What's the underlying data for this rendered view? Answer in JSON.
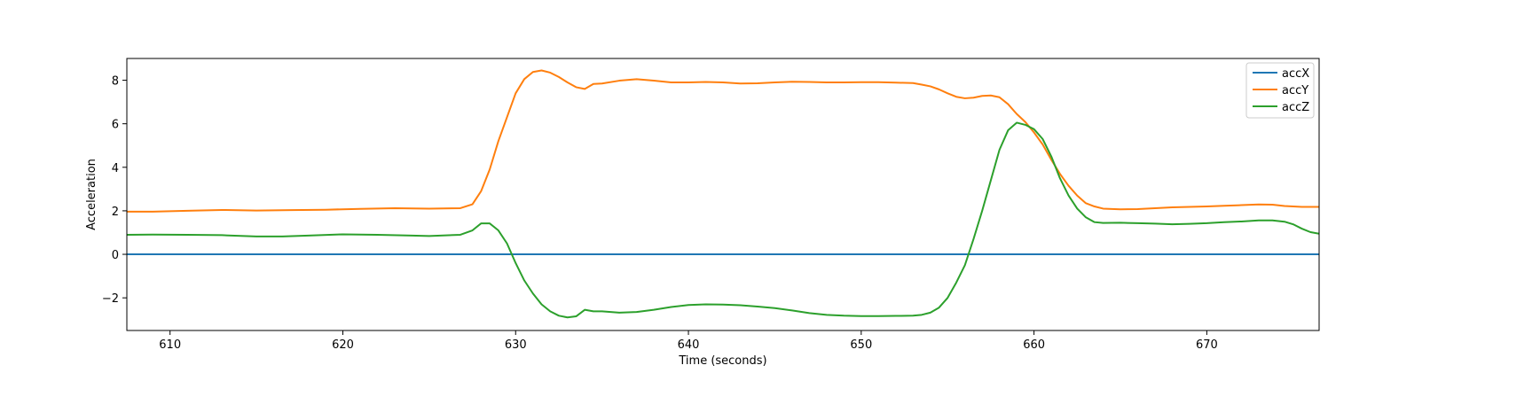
{
  "chart_data": {
    "type": "line",
    "title": "",
    "xlabel": "Time (seconds)",
    "ylabel": "Acceleration",
    "xlim": [
      607.5,
      676.5
    ],
    "ylim": [
      -3.5,
      9.0
    ],
    "xticks": [
      610,
      620,
      630,
      640,
      650,
      660,
      670
    ],
    "xtick_labels": [
      "610",
      "620",
      "630",
      "640",
      "650",
      "660",
      "670"
    ],
    "yticks": [
      -2,
      0,
      2,
      4,
      6,
      8
    ],
    "ytick_labels": [
      "−2",
      "0",
      "2",
      "4",
      "6",
      "8"
    ],
    "grid": false,
    "legend_position": "top-right",
    "series": [
      {
        "name": "accX",
        "color": "#1f77b4",
        "points": [
          [
            607.5,
            0
          ],
          [
            676.5,
            0
          ]
        ]
      },
      {
        "name": "accY",
        "color": "#ff7f0e",
        "points": [
          [
            607.5,
            1.96
          ],
          [
            609,
            1.96
          ],
          [
            611,
            2.0
          ],
          [
            613,
            2.04
          ],
          [
            615,
            2.01
          ],
          [
            617,
            2.03
          ],
          [
            619,
            2.05
          ],
          [
            621,
            2.09
          ],
          [
            623,
            2.12
          ],
          [
            625,
            2.1
          ],
          [
            626.8,
            2.12
          ],
          [
            627.5,
            2.3
          ],
          [
            628.0,
            2.9
          ],
          [
            628.5,
            3.9
          ],
          [
            629.0,
            5.2
          ],
          [
            629.5,
            6.3
          ],
          [
            630.0,
            7.4
          ],
          [
            630.5,
            8.05
          ],
          [
            631.0,
            8.38
          ],
          [
            631.5,
            8.45
          ],
          [
            632.0,
            8.35
          ],
          [
            632.5,
            8.15
          ],
          [
            633.0,
            7.9
          ],
          [
            633.5,
            7.68
          ],
          [
            634.0,
            7.6
          ],
          [
            634.5,
            7.83
          ],
          [
            635.0,
            7.85
          ],
          [
            636.0,
            7.98
          ],
          [
            637.0,
            8.05
          ],
          [
            638.0,
            7.98
          ],
          [
            639.0,
            7.9
          ],
          [
            640.0,
            7.9
          ],
          [
            641.0,
            7.92
          ],
          [
            642.0,
            7.9
          ],
          [
            643.0,
            7.85
          ],
          [
            644.0,
            7.86
          ],
          [
            645.0,
            7.9
          ],
          [
            646.0,
            7.93
          ],
          [
            647.0,
            7.92
          ],
          [
            648.0,
            7.9
          ],
          [
            649.0,
            7.9
          ],
          [
            650.0,
            7.91
          ],
          [
            651.0,
            7.91
          ],
          [
            652.0,
            7.89
          ],
          [
            653.0,
            7.87
          ],
          [
            653.5,
            7.8
          ],
          [
            654.0,
            7.72
          ],
          [
            654.5,
            7.58
          ],
          [
            655.0,
            7.4
          ],
          [
            655.5,
            7.24
          ],
          [
            656.0,
            7.17
          ],
          [
            656.5,
            7.2
          ],
          [
            657.0,
            7.28
          ],
          [
            657.5,
            7.3
          ],
          [
            658.0,
            7.22
          ],
          [
            658.5,
            6.9
          ],
          [
            659.0,
            6.45
          ],
          [
            659.5,
            6.08
          ],
          [
            660.0,
            5.6
          ],
          [
            660.5,
            5.05
          ],
          [
            661.0,
            4.35
          ],
          [
            661.5,
            3.7
          ],
          [
            662.0,
            3.15
          ],
          [
            662.5,
            2.7
          ],
          [
            663.0,
            2.35
          ],
          [
            663.5,
            2.2
          ],
          [
            664.0,
            2.1
          ],
          [
            665.0,
            2.07
          ],
          [
            666.0,
            2.08
          ],
          [
            667.0,
            2.12
          ],
          [
            668.0,
            2.16
          ],
          [
            669.0,
            2.18
          ],
          [
            670.0,
            2.2
          ],
          [
            671.0,
            2.23
          ],
          [
            672.0,
            2.26
          ],
          [
            673.0,
            2.29
          ],
          [
            673.8,
            2.28
          ],
          [
            674.5,
            2.22
          ],
          [
            675.5,
            2.18
          ],
          [
            676.5,
            2.18
          ]
        ]
      },
      {
        "name": "accZ",
        "color": "#2ca02c",
        "points": [
          [
            607.5,
            0.9
          ],
          [
            609,
            0.91
          ],
          [
            611,
            0.9
          ],
          [
            613,
            0.88
          ],
          [
            615,
            0.82
          ],
          [
            616.5,
            0.82
          ],
          [
            618,
            0.86
          ],
          [
            620,
            0.92
          ],
          [
            622,
            0.9
          ],
          [
            624,
            0.86
          ],
          [
            625,
            0.84
          ],
          [
            626.8,
            0.9
          ],
          [
            627.5,
            1.1
          ],
          [
            628.0,
            1.42
          ],
          [
            628.5,
            1.42
          ],
          [
            629.0,
            1.1
          ],
          [
            629.5,
            0.5
          ],
          [
            630.0,
            -0.4
          ],
          [
            630.5,
            -1.2
          ],
          [
            631.0,
            -1.8
          ],
          [
            631.5,
            -2.3
          ],
          [
            632.0,
            -2.62
          ],
          [
            632.5,
            -2.82
          ],
          [
            633.0,
            -2.9
          ],
          [
            633.5,
            -2.85
          ],
          [
            634.0,
            -2.55
          ],
          [
            634.5,
            -2.62
          ],
          [
            635.0,
            -2.62
          ],
          [
            636.0,
            -2.68
          ],
          [
            637.0,
            -2.65
          ],
          [
            638.0,
            -2.55
          ],
          [
            639.0,
            -2.42
          ],
          [
            640.0,
            -2.33
          ],
          [
            641.0,
            -2.3
          ],
          [
            642.0,
            -2.31
          ],
          [
            643.0,
            -2.34
          ],
          [
            644.0,
            -2.4
          ],
          [
            645.0,
            -2.47
          ],
          [
            646.0,
            -2.58
          ],
          [
            647.0,
            -2.7
          ],
          [
            648.0,
            -2.78
          ],
          [
            649.0,
            -2.82
          ],
          [
            650.0,
            -2.84
          ],
          [
            651.0,
            -2.84
          ],
          [
            652.0,
            -2.83
          ],
          [
            653.0,
            -2.82
          ],
          [
            653.5,
            -2.78
          ],
          [
            654.0,
            -2.68
          ],
          [
            654.5,
            -2.45
          ],
          [
            655.0,
            -2.0
          ],
          [
            655.5,
            -1.3
          ],
          [
            656.0,
            -0.5
          ],
          [
            656.5,
            0.7
          ],
          [
            657.0,
            2.0
          ],
          [
            657.5,
            3.4
          ],
          [
            658.0,
            4.8
          ],
          [
            658.5,
            5.7
          ],
          [
            659.0,
            6.05
          ],
          [
            659.5,
            5.95
          ],
          [
            660.0,
            5.75
          ],
          [
            660.5,
            5.3
          ],
          [
            661.0,
            4.5
          ],
          [
            661.5,
            3.5
          ],
          [
            662.0,
            2.7
          ],
          [
            662.5,
            2.1
          ],
          [
            663.0,
            1.7
          ],
          [
            663.5,
            1.48
          ],
          [
            664.0,
            1.44
          ],
          [
            665.0,
            1.45
          ],
          [
            666.0,
            1.43
          ],
          [
            667.0,
            1.41
          ],
          [
            668.0,
            1.38
          ],
          [
            669.0,
            1.4
          ],
          [
            670.0,
            1.43
          ],
          [
            671.0,
            1.48
          ],
          [
            672.0,
            1.51
          ],
          [
            673.0,
            1.56
          ],
          [
            673.8,
            1.56
          ],
          [
            674.5,
            1.5
          ],
          [
            675.0,
            1.38
          ],
          [
            675.5,
            1.18
          ],
          [
            676.0,
            1.02
          ],
          [
            676.5,
            0.95
          ]
        ]
      }
    ]
  }
}
